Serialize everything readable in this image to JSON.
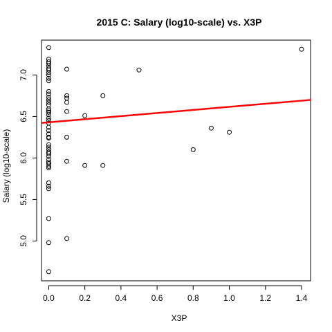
{
  "chart_data": {
    "type": "scatter",
    "title": "2015 C: Salary (log10-scale) vs. X3P",
    "xlabel": "X3P",
    "ylabel": "Salary (log10-scale)",
    "xlim": [
      -0.04,
      1.45
    ],
    "ylim": [
      4.52,
      7.42
    ],
    "x_ticks": [
      0.0,
      0.2,
      0.4,
      0.6,
      0.8,
      1.0,
      1.2,
      1.4
    ],
    "x_tick_labels": [
      "0.0",
      "0.2",
      "0.4",
      "0.6",
      "0.8",
      "1.0",
      "1.2",
      "1.4"
    ],
    "y_ticks": [
      5.0,
      5.5,
      6.0,
      6.5,
      7.0
    ],
    "y_tick_labels": [
      "5.0",
      "5.5",
      "6.0",
      "6.5",
      "7.0"
    ],
    "grid": false,
    "points": [
      [
        0.0,
        7.33
      ],
      [
        0.0,
        7.19
      ],
      [
        0.0,
        7.16
      ],
      [
        0.0,
        7.14
      ],
      [
        0.0,
        7.11
      ],
      [
        0.0,
        7.08
      ],
      [
        0.0,
        7.06
      ],
      [
        0.0,
        7.03
      ],
      [
        0.0,
        7.0
      ],
      [
        0.0,
        6.96
      ],
      [
        0.0,
        6.93
      ],
      [
        0.0,
        6.8
      ],
      [
        0.0,
        6.77
      ],
      [
        0.0,
        6.73
      ],
      [
        0.0,
        6.7
      ],
      [
        0.0,
        6.67
      ],
      [
        0.0,
        6.64
      ],
      [
        0.0,
        6.59
      ],
      [
        0.0,
        6.57
      ],
      [
        0.0,
        6.55
      ],
      [
        0.0,
        6.52
      ],
      [
        0.0,
        6.48
      ],
      [
        0.0,
        6.45
      ],
      [
        0.0,
        6.42
      ],
      [
        0.0,
        6.37
      ],
      [
        0.0,
        6.33
      ],
      [
        0.0,
        6.29
      ],
      [
        0.0,
        6.25
      ],
      [
        0.0,
        6.24
      ],
      [
        0.0,
        6.16
      ],
      [
        0.0,
        6.13
      ],
      [
        0.0,
        6.1
      ],
      [
        0.0,
        6.07
      ],
      [
        0.0,
        6.05
      ],
      [
        0.0,
        6.02
      ],
      [
        0.0,
        5.98
      ],
      [
        0.0,
        5.95
      ],
      [
        0.0,
        5.93
      ],
      [
        0.0,
        5.9
      ],
      [
        0.0,
        5.88
      ],
      [
        0.0,
        5.7
      ],
      [
        0.0,
        5.66
      ],
      [
        0.0,
        5.63
      ],
      [
        0.0,
        5.27
      ],
      [
        0.0,
        4.98
      ],
      [
        0.0,
        4.63
      ],
      [
        0.1,
        7.07
      ],
      [
        0.1,
        6.75
      ],
      [
        0.1,
        6.72
      ],
      [
        0.1,
        6.67
      ],
      [
        0.1,
        6.56
      ],
      [
        0.1,
        6.25
      ],
      [
        0.1,
        5.96
      ],
      [
        0.1,
        5.03
      ],
      [
        0.2,
        6.51
      ],
      [
        0.2,
        5.91
      ],
      [
        0.3,
        6.75
      ],
      [
        0.3,
        5.91
      ],
      [
        0.5,
        7.06
      ],
      [
        0.8,
        6.1
      ],
      [
        0.9,
        6.36
      ],
      [
        1.0,
        6.31
      ],
      [
        1.4,
        7.31
      ]
    ],
    "regression_line": {
      "intercept": 6.43,
      "slope": 0.186,
      "color": "#ff0000"
    },
    "point_color": "#000000"
  }
}
